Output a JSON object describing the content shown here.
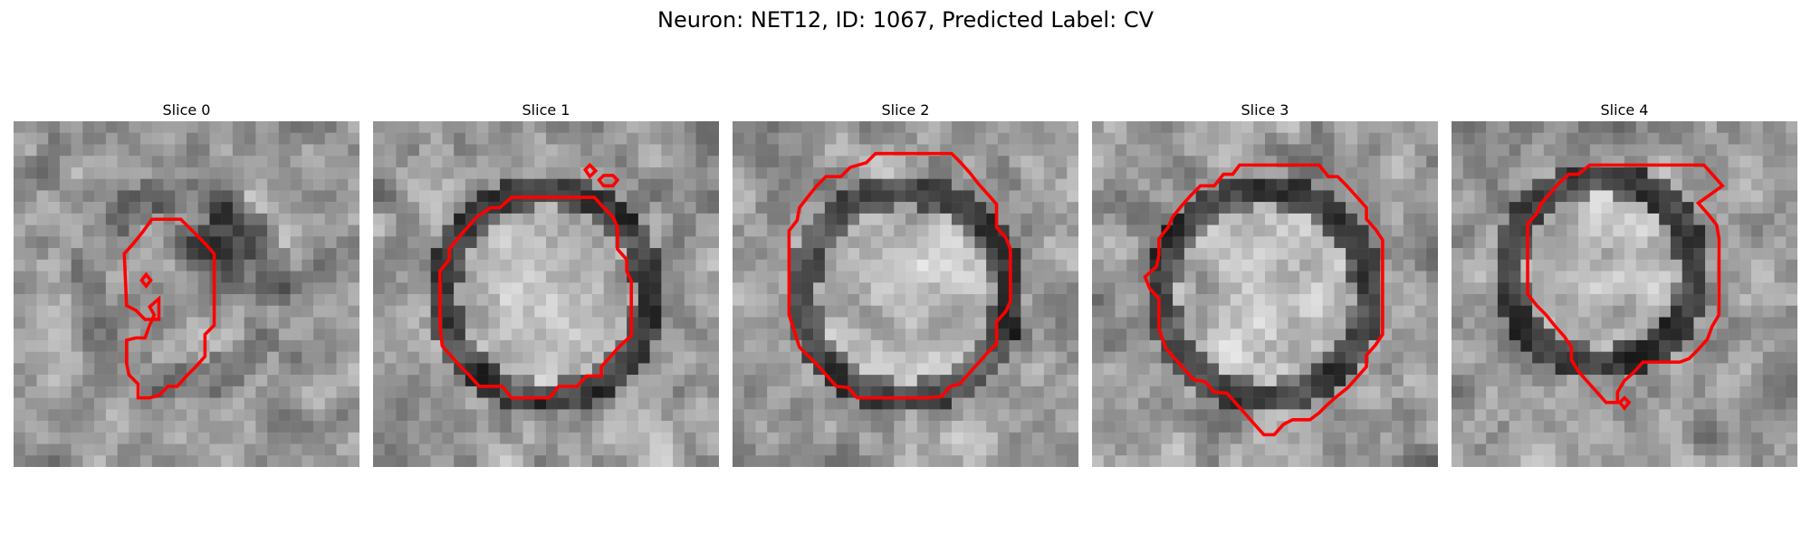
{
  "figure": {
    "title": "Neuron: NET12, ID: 1067, Predicted Label: CV",
    "contour_color": "#ff0000"
  },
  "panels": [
    {
      "title": "Slice 0"
    },
    {
      "title": "Slice 1"
    },
    {
      "title": "Slice 2"
    },
    {
      "title": "Slice 3"
    },
    {
      "title": "Slice 4"
    }
  ]
}
